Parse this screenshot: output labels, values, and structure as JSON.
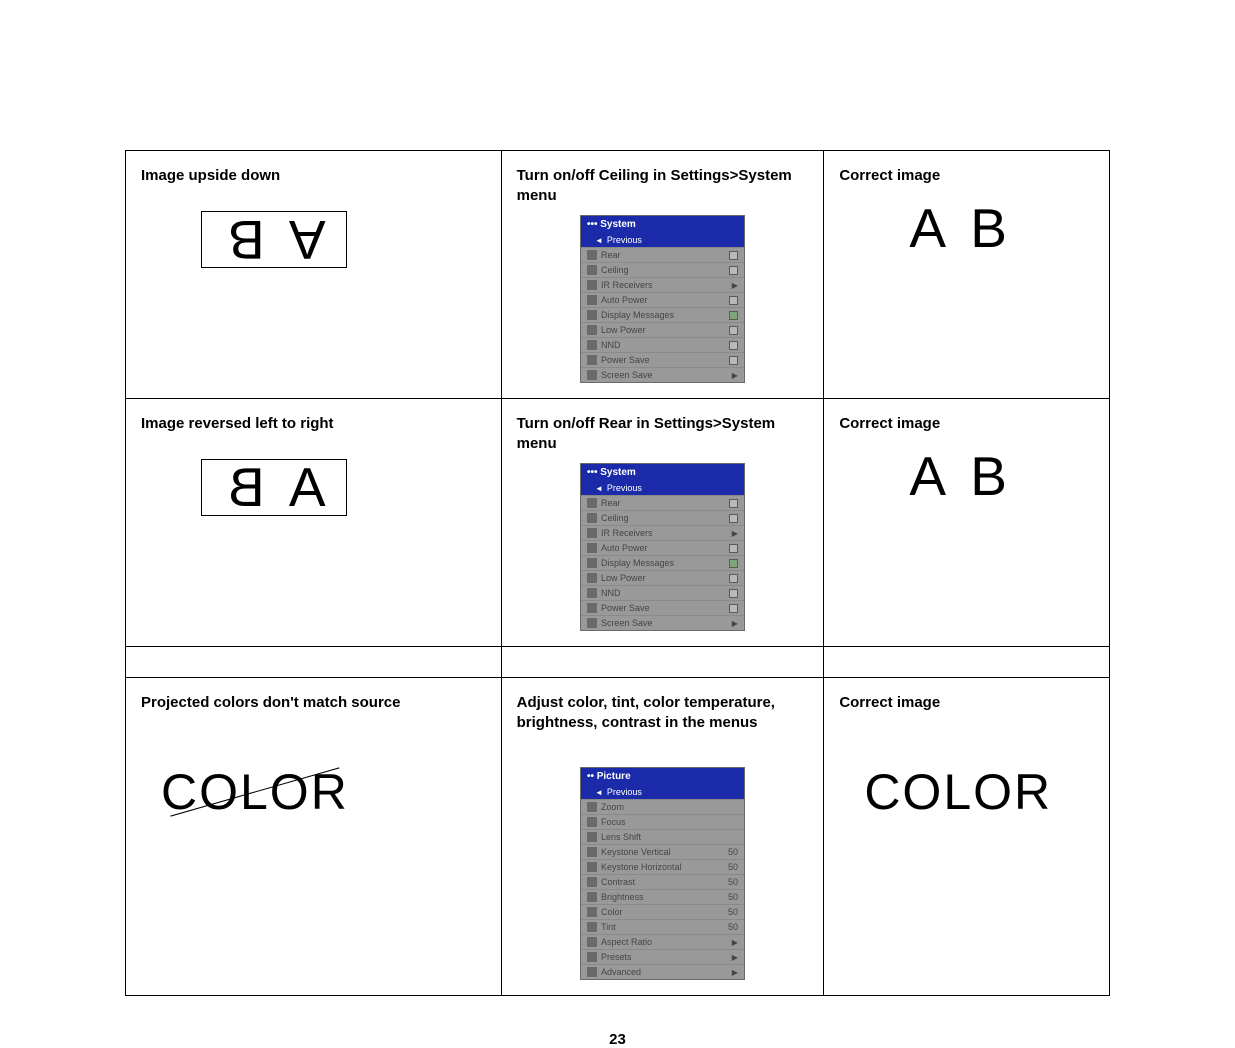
{
  "page_number": "23",
  "rows": {
    "r1": {
      "problem": "Image upside down",
      "solution": "Turn on/off Ceiling in Settings>System menu",
      "result": "Correct image",
      "example": "A B",
      "menu": {
        "title_prefix": "•••",
        "title": "System",
        "prev": "Previous",
        "items": [
          {
            "label": "Rear",
            "ctrl": "check"
          },
          {
            "label": "Ceiling",
            "ctrl": "check"
          },
          {
            "label": "IR Receivers",
            "ctrl": "arrow"
          },
          {
            "label": "Auto Power",
            "ctrl": "check"
          },
          {
            "label": "Display Messages",
            "ctrl": "check_on"
          },
          {
            "label": "Low Power",
            "ctrl": "check"
          },
          {
            "label": "NND",
            "ctrl": "check"
          },
          {
            "label": "Power Save",
            "ctrl": "check"
          },
          {
            "label": "Screen Save",
            "ctrl": "arrow"
          }
        ],
        "title_bg": "#1a2aa8",
        "prev_bg": "#1a2aa8",
        "row_bg": "#999999"
      }
    },
    "r2": {
      "problem": "Image reversed left to right",
      "solution": "Turn on/off Rear in Settings>System menu",
      "result": "Correct image",
      "example": "A B",
      "menu": {
        "title_prefix": "•••",
        "title": "System",
        "prev": "Previous",
        "items": [
          {
            "label": "Rear",
            "ctrl": "check"
          },
          {
            "label": "Ceiling",
            "ctrl": "check"
          },
          {
            "label": "IR Receivers",
            "ctrl": "arrow"
          },
          {
            "label": "Auto Power",
            "ctrl": "check"
          },
          {
            "label": "Display Messages",
            "ctrl": "check_on"
          },
          {
            "label": "Low Power",
            "ctrl": "check"
          },
          {
            "label": "NND",
            "ctrl": "check"
          },
          {
            "label": "Power Save",
            "ctrl": "check"
          },
          {
            "label": "Screen Save",
            "ctrl": "arrow"
          }
        ],
        "title_bg": "#1a2aa8",
        "prev_bg": "#1a2aa8",
        "row_bg": "#999999"
      }
    },
    "r3": {
      "problem": "Projected colors don't match source",
      "solution": "Adjust color, tint, color temperature, brightness, contrast in the menus",
      "result": "Correct image",
      "example": "COLOR",
      "menu": {
        "title_prefix": "••",
        "title": "Picture",
        "prev": "Previous",
        "items": [
          {
            "label": "Zoom",
            "ctrl": "none"
          },
          {
            "label": "Focus",
            "ctrl": "none"
          },
          {
            "label": "Lens Shift",
            "ctrl": "none"
          },
          {
            "label": "Keystone Vertical",
            "ctrl": "val",
            "val": "50"
          },
          {
            "label": "Keystone Horizontal",
            "ctrl": "val",
            "val": "50"
          },
          {
            "label": "Contrast",
            "ctrl": "val",
            "val": "50"
          },
          {
            "label": "Brightness",
            "ctrl": "val",
            "val": "50"
          },
          {
            "label": "Color",
            "ctrl": "val",
            "val": "50"
          },
          {
            "label": "Tint",
            "ctrl": "val",
            "val": "50"
          },
          {
            "label": "Aspect Ratio",
            "ctrl": "arrow"
          },
          {
            "label": "Presets",
            "ctrl": "arrow"
          },
          {
            "label": "Advanced",
            "ctrl": "arrow"
          }
        ],
        "title_bg": "#1a2aa8",
        "prev_bg": "#1a2aa8",
        "row_bg": "#999999"
      }
    }
  },
  "colors": {
    "border": "#000000",
    "menu_title_bg": "#1a2aa8",
    "menu_row_bg": "#999999"
  }
}
